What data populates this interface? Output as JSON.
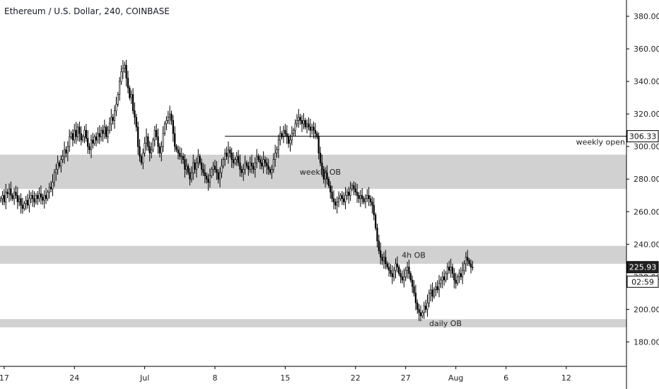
{
  "header": {
    "title": "Ethereum / U.S. Dollar, 240, COINBASE"
  },
  "chart_data": {
    "type": "candlestick",
    "title": "Ethereum / U.S. Dollar, 240, COINBASE",
    "xlabel": "",
    "ylabel": "",
    "ylim": [
      165,
      390
    ],
    "xlim": [
      "2019-06-16T14:00",
      "2019-08-18T00:00"
    ],
    "y_ticks": [
      180,
      200,
      220,
      240,
      260,
      280,
      300,
      320,
      340,
      360,
      380
    ],
    "y_tick_labels": [
      "180.00",
      "200.00",
      "220.00",
      "240.00",
      "260.00",
      "280.00",
      "300.00",
      "320.00",
      "340.00",
      "360.00",
      "380.00"
    ],
    "x_ticks": [
      "2019-06-17",
      "2019-06-24",
      "2019-07-01",
      "2019-07-08",
      "2019-07-15",
      "2019-07-22",
      "2019-07-27",
      "2019-08-01",
      "2019-08-06",
      "2019-08-12"
    ],
    "x_tick_labels": [
      "17",
      "24",
      "Jul",
      "8",
      "15",
      "22",
      "27",
      "Aug",
      "6",
      "12"
    ],
    "zones": [
      {
        "label": "weekly OB",
        "low": 274,
        "high": 295
      },
      {
        "label": "4h OB",
        "low": 228,
        "high": 239
      },
      {
        "label": "daily OB",
        "low": 189,
        "high": 194
      }
    ],
    "lines": [
      {
        "label": "weekly open",
        "value": 306.33,
        "start": "2019-07-09T00:00"
      }
    ],
    "price_labels": [
      {
        "value": 306.33,
        "text": "306.33",
        "style": "outline"
      },
      {
        "value": 225.93,
        "text": "225.93",
        "style": "dark"
      },
      {
        "value": 217,
        "text": "02:59",
        "style": "outline"
      }
    ],
    "last_price": 225.93,
    "series": [
      {
        "x_start": "2019-06-16T16:00",
        "interval_hours": 4,
        "close": [
          268,
          270,
          266,
          272,
          271,
          274,
          270,
          268,
          272,
          270,
          266,
          268,
          264,
          262,
          265,
          267,
          264,
          268,
          270,
          268,
          266,
          270,
          268,
          271,
          269,
          267,
          270,
          268,
          272,
          275,
          274,
          278,
          284,
          286,
          290,
          288,
          292,
          294,
          298,
          296,
          300,
          306,
          308,
          304,
          310,
          306,
          312,
          308,
          304,
          306,
          310,
          305,
          300,
          298,
          304,
          302,
          306,
          304,
          308,
          306,
          310,
          308,
          312,
          306,
          310,
          314,
          318,
          316,
          322,
          326,
          332,
          340,
          346,
          348,
          350,
          342,
          336,
          330,
          332,
          322,
          318,
          312,
          300,
          294,
          290,
          296,
          302,
          306,
          300,
          296,
          298,
          304,
          310,
          306,
          300,
          296,
          300,
          308,
          314,
          316,
          318,
          320,
          316,
          308,
          300,
          298,
          296,
          294,
          294,
          292,
          286,
          288,
          284,
          280,
          284,
          290,
          286,
          290,
          294,
          290,
          286,
          284,
          282,
          280,
          278,
          282,
          286,
          288,
          286,
          284,
          280,
          284,
          288,
          292,
          296,
          294,
          298,
          296,
          292,
          290,
          292,
          294,
          290,
          286,
          284,
          286,
          290,
          288,
          286,
          290,
          288,
          286,
          290,
          294,
          292,
          290,
          288,
          292,
          290,
          288,
          286,
          284,
          286,
          292,
          296,
          298,
          304,
          308,
          306,
          310,
          308,
          306,
          302,
          304,
          308,
          310,
          314,
          316,
          318,
          316,
          314,
          316,
          312,
          314,
          312,
          310,
          312,
          310,
          308,
          306,
          296,
          290,
          286,
          280,
          284,
          280,
          276,
          272,
          268,
          266,
          264,
          266,
          268,
          270,
          268,
          266,
          270,
          272,
          270,
          274,
          276,
          274,
          272,
          270,
          268,
          270,
          268,
          266,
          268,
          270,
          268,
          266,
          264,
          258,
          250,
          242,
          236,
          232,
          230,
          232,
          228,
          226,
          224,
          222,
          220,
          224,
          228,
          226,
          222,
          220,
          218,
          220,
          224,
          226,
          222,
          218,
          214,
          210,
          204,
          200,
          198,
          196,
          198,
          202,
          200,
          204,
          210,
          212,
          208,
          212,
          214,
          212,
          216,
          218,
          220,
          218,
          222,
          226,
          224,
          226,
          222,
          218,
          216,
          220,
          222,
          220,
          224,
          228,
          232,
          230,
          228,
          226,
          225.93
        ]
      }
    ]
  }
}
